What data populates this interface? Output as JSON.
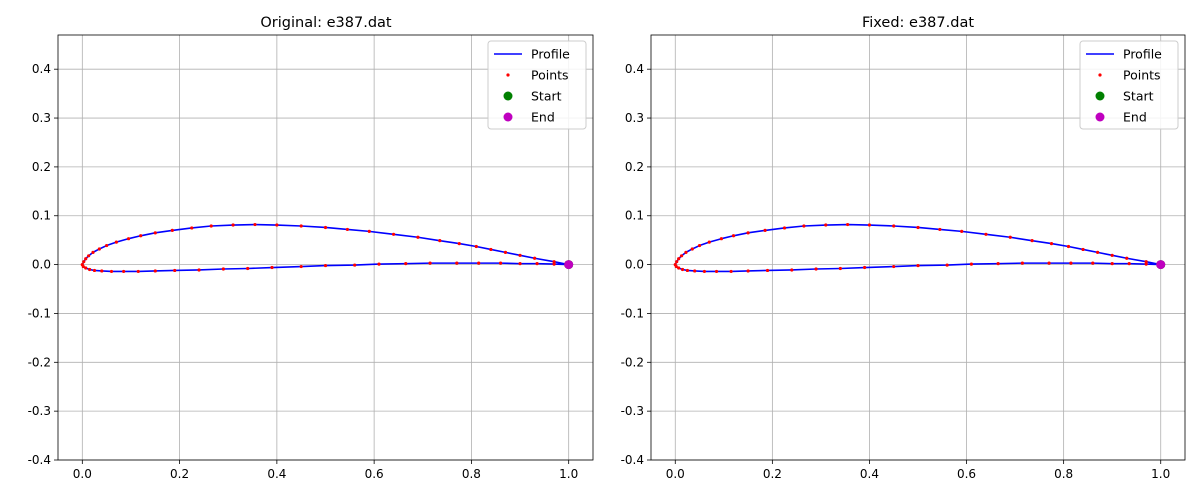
{
  "chart_data": [
    {
      "type": "line",
      "title": "Original: e387.dat",
      "xlabel": "",
      "ylabel": "",
      "xlim": [
        -0.05,
        1.05
      ],
      "ylim": [
        -0.4,
        0.47
      ],
      "xticks": [
        0.0,
        0.2,
        0.4,
        0.6,
        0.8,
        1.0
      ],
      "yticks": [
        -0.4,
        -0.3,
        -0.2,
        -0.1,
        0.0,
        0.1,
        0.2,
        0.3,
        0.4
      ],
      "grid": true,
      "legend_position": "top-right",
      "legend": [
        "Profile",
        "Points",
        "Start",
        "End"
      ],
      "colors": {
        "profile": "#0000ff",
        "points": "#ff0000",
        "start": "#008000",
        "end": "#bf00bf"
      },
      "series": [
        {
          "name": "Profile",
          "style": "line",
          "x": [
            1.0,
            0.97,
            0.93,
            0.9,
            0.87,
            0.84,
            0.81,
            0.775,
            0.735,
            0.69,
            0.64,
            0.59,
            0.545,
            0.5,
            0.45,
            0.4,
            0.355,
            0.31,
            0.265,
            0.225,
            0.185,
            0.15,
            0.12,
            0.095,
            0.07,
            0.05,
            0.035,
            0.022,
            0.013,
            0.007,
            0.003,
            0.0,
            0.002,
            0.007,
            0.015,
            0.025,
            0.04,
            0.06,
            0.085,
            0.115,
            0.15,
            0.19,
            0.24,
            0.29,
            0.34,
            0.39,
            0.45,
            0.5,
            0.56,
            0.61,
            0.665,
            0.715,
            0.77,
            0.815,
            0.86,
            0.9,
            0.935,
            0.97,
            1.0
          ],
          "y": [
            0.0,
            0.006,
            0.013,
            0.019,
            0.025,
            0.031,
            0.037,
            0.043,
            0.049,
            0.056,
            0.062,
            0.068,
            0.072,
            0.076,
            0.079,
            0.081,
            0.082,
            0.081,
            0.079,
            0.075,
            0.07,
            0.065,
            0.059,
            0.053,
            0.046,
            0.039,
            0.032,
            0.025,
            0.018,
            0.012,
            0.006,
            0.0,
            -0.004,
            -0.007,
            -0.01,
            -0.012,
            -0.013,
            -0.014,
            -0.014,
            -0.014,
            -0.013,
            -0.012,
            -0.011,
            -0.009,
            -0.008,
            -0.006,
            -0.004,
            -0.002,
            -0.001,
            0.001,
            0.002,
            0.003,
            0.003,
            0.003,
            0.003,
            0.002,
            0.002,
            0.001,
            0.0
          ]
        },
        {
          "name": "Points",
          "style": "points",
          "x": [
            1.0,
            0.97,
            0.93,
            0.9,
            0.87,
            0.84,
            0.81,
            0.775,
            0.735,
            0.69,
            0.64,
            0.59,
            0.545,
            0.5,
            0.45,
            0.4,
            0.355,
            0.31,
            0.265,
            0.225,
            0.185,
            0.15,
            0.12,
            0.095,
            0.07,
            0.05,
            0.035,
            0.022,
            0.013,
            0.007,
            0.003,
            0.0,
            0.002,
            0.007,
            0.015,
            0.025,
            0.04,
            0.06,
            0.085,
            0.115,
            0.15,
            0.19,
            0.24,
            0.29,
            0.34,
            0.39,
            0.45,
            0.5,
            0.56,
            0.61,
            0.665,
            0.715,
            0.77,
            0.815,
            0.86,
            0.9,
            0.935,
            0.97,
            1.0
          ],
          "y": [
            0.0,
            0.006,
            0.013,
            0.019,
            0.025,
            0.031,
            0.037,
            0.043,
            0.049,
            0.056,
            0.062,
            0.068,
            0.072,
            0.076,
            0.079,
            0.081,
            0.082,
            0.081,
            0.079,
            0.075,
            0.07,
            0.065,
            0.059,
            0.053,
            0.046,
            0.039,
            0.032,
            0.025,
            0.018,
            0.012,
            0.006,
            0.0,
            -0.004,
            -0.007,
            -0.01,
            -0.012,
            -0.013,
            -0.014,
            -0.014,
            -0.014,
            -0.013,
            -0.012,
            -0.011,
            -0.009,
            -0.008,
            -0.006,
            -0.004,
            -0.002,
            -0.001,
            0.001,
            0.002,
            0.003,
            0.003,
            0.003,
            0.003,
            0.002,
            0.002,
            0.001,
            0.0
          ]
        },
        {
          "name": "Start",
          "style": "marker",
          "x": [
            1.0
          ],
          "y": [
            0.0
          ]
        },
        {
          "name": "End",
          "style": "marker",
          "x": [
            1.0
          ],
          "y": [
            0.0
          ]
        }
      ]
    },
    {
      "type": "line",
      "title": "Fixed: e387.dat",
      "xlabel": "",
      "ylabel": "",
      "xlim": [
        -0.05,
        1.05
      ],
      "ylim": [
        -0.4,
        0.47
      ],
      "xticks": [
        0.0,
        0.2,
        0.4,
        0.6,
        0.8,
        1.0
      ],
      "yticks": [
        -0.4,
        -0.3,
        -0.2,
        -0.1,
        0.0,
        0.1,
        0.2,
        0.3,
        0.4
      ],
      "grid": true,
      "legend_position": "top-right",
      "legend": [
        "Profile",
        "Points",
        "Start",
        "End"
      ],
      "colors": {
        "profile": "#0000ff",
        "points": "#ff0000",
        "start": "#008000",
        "end": "#bf00bf"
      },
      "series": [
        {
          "name": "Profile",
          "style": "line",
          "x": [
            1.0,
            0.97,
            0.93,
            0.9,
            0.87,
            0.84,
            0.81,
            0.775,
            0.735,
            0.69,
            0.64,
            0.59,
            0.545,
            0.5,
            0.45,
            0.4,
            0.355,
            0.31,
            0.265,
            0.225,
            0.185,
            0.15,
            0.12,
            0.095,
            0.07,
            0.05,
            0.035,
            0.022,
            0.013,
            0.007,
            0.003,
            0.0,
            0.002,
            0.007,
            0.015,
            0.025,
            0.04,
            0.06,
            0.085,
            0.115,
            0.15,
            0.19,
            0.24,
            0.29,
            0.34,
            0.39,
            0.45,
            0.5,
            0.56,
            0.61,
            0.665,
            0.715,
            0.77,
            0.815,
            0.86,
            0.9,
            0.935,
            0.97,
            1.0
          ],
          "y": [
            0.0,
            0.006,
            0.013,
            0.019,
            0.025,
            0.031,
            0.037,
            0.043,
            0.049,
            0.056,
            0.062,
            0.068,
            0.072,
            0.076,
            0.079,
            0.081,
            0.082,
            0.081,
            0.079,
            0.075,
            0.07,
            0.065,
            0.059,
            0.053,
            0.046,
            0.039,
            0.032,
            0.025,
            0.018,
            0.012,
            0.006,
            0.0,
            -0.004,
            -0.007,
            -0.01,
            -0.012,
            -0.013,
            -0.014,
            -0.014,
            -0.014,
            -0.013,
            -0.012,
            -0.011,
            -0.009,
            -0.008,
            -0.006,
            -0.004,
            -0.002,
            -0.001,
            0.001,
            0.002,
            0.003,
            0.003,
            0.003,
            0.003,
            0.002,
            0.002,
            0.001,
            0.0
          ]
        },
        {
          "name": "Points",
          "style": "points",
          "x": [
            1.0,
            0.97,
            0.93,
            0.9,
            0.87,
            0.84,
            0.81,
            0.775,
            0.735,
            0.69,
            0.64,
            0.59,
            0.545,
            0.5,
            0.45,
            0.4,
            0.355,
            0.31,
            0.265,
            0.225,
            0.185,
            0.15,
            0.12,
            0.095,
            0.07,
            0.05,
            0.035,
            0.022,
            0.013,
            0.007,
            0.003,
            0.0,
            0.002,
            0.007,
            0.015,
            0.025,
            0.04,
            0.06,
            0.085,
            0.115,
            0.15,
            0.19,
            0.24,
            0.29,
            0.34,
            0.39,
            0.45,
            0.5,
            0.56,
            0.61,
            0.665,
            0.715,
            0.77,
            0.815,
            0.86,
            0.9,
            0.935,
            0.97,
            1.0
          ],
          "y": [
            0.0,
            0.006,
            0.013,
            0.019,
            0.025,
            0.031,
            0.037,
            0.043,
            0.049,
            0.056,
            0.062,
            0.068,
            0.072,
            0.076,
            0.079,
            0.081,
            0.082,
            0.081,
            0.079,
            0.075,
            0.07,
            0.065,
            0.059,
            0.053,
            0.046,
            0.039,
            0.032,
            0.025,
            0.018,
            0.012,
            0.006,
            0.0,
            -0.004,
            -0.007,
            -0.01,
            -0.012,
            -0.013,
            -0.014,
            -0.014,
            -0.014,
            -0.013,
            -0.012,
            -0.011,
            -0.009,
            -0.008,
            -0.006,
            -0.004,
            -0.002,
            -0.001,
            0.001,
            0.002,
            0.003,
            0.003,
            0.003,
            0.003,
            0.002,
            0.002,
            0.001,
            0.0
          ]
        },
        {
          "name": "Start",
          "style": "marker",
          "x": [
            1.0
          ],
          "y": [
            0.0
          ]
        },
        {
          "name": "End",
          "style": "marker",
          "x": [
            1.0
          ],
          "y": [
            0.0
          ]
        }
      ]
    }
  ]
}
